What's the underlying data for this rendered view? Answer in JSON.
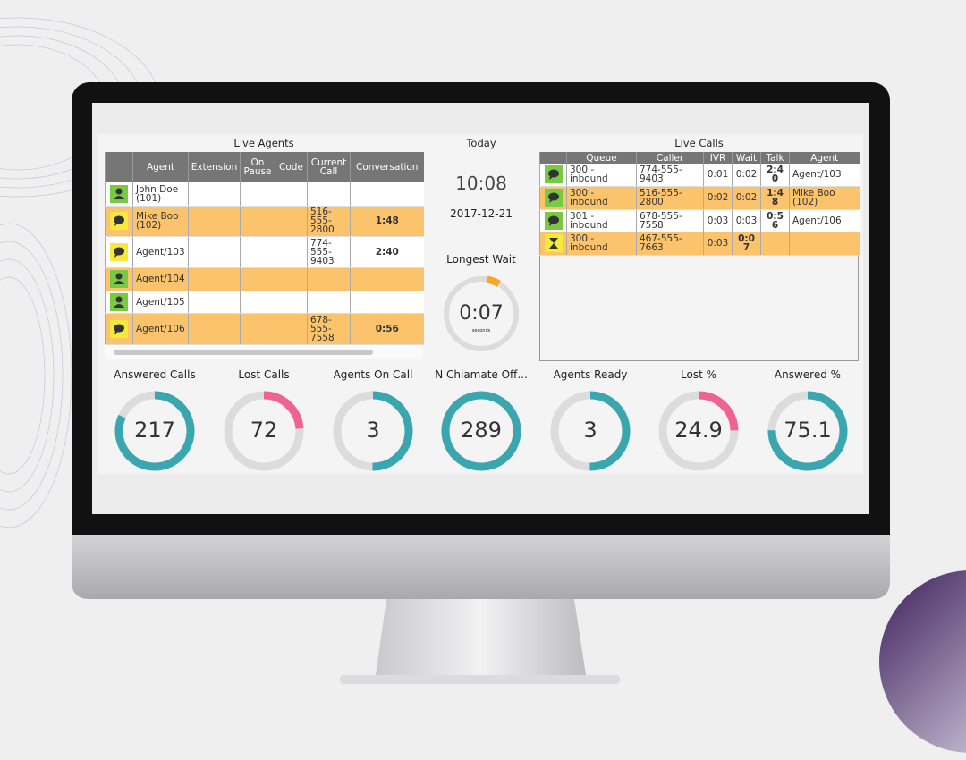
{
  "live_agents": {
    "title": "Live Agents",
    "columns": [
      "Agent",
      "Extension",
      "On Pause",
      "Code",
      "Current Call",
      "Conversation"
    ],
    "rows": [
      {
        "agent": "John Doe (101)"
      },
      {
        "agent": "Mike Boo (102)",
        "current_call": "516-555-2800",
        "conversation": "1:48"
      },
      {
        "agent": "Agent/103",
        "current_call": "774-555-9403",
        "conversation": "2:40"
      },
      {
        "agent": "Agent/104"
      },
      {
        "agent": "Agent/105"
      },
      {
        "agent": "Agent/106",
        "current_call": "678-555-7558",
        "conversation": "0:56"
      }
    ]
  },
  "today": {
    "title": "Today",
    "time": "10:08",
    "date": "2017-12-21"
  },
  "longest_wait": {
    "title": "Longest Wait",
    "value": "0:07",
    "unit": "seconds"
  },
  "live_calls": {
    "title": "Live Calls",
    "columns": [
      "Queue",
      "Caller",
      "IVR",
      "Wait",
      "Talk",
      "Agent"
    ],
    "rows": [
      {
        "queue": "300 - inbound",
        "caller": "774-555-9403",
        "ivr": "0:01",
        "wait": "0:02",
        "talk": "2:40",
        "agent": "Agent/103"
      },
      {
        "queue": "300 - inbound",
        "caller": "516-555-2800",
        "ivr": "0:02",
        "wait": "0:02",
        "talk": "1:48",
        "agent": "Mike Boo (102)"
      },
      {
        "queue": "301 - inbound",
        "caller": "678-555-7558",
        "ivr": "0:03",
        "wait": "0:03",
        "talk": "0:56",
        "agent": "Agent/106"
      },
      {
        "queue": "300 - inbound",
        "caller": "467-555-7663",
        "ivr": "0:03",
        "wait": "0:07"
      }
    ]
  },
  "kpis": [
    {
      "label": "Answered Calls",
      "value": 217
    },
    {
      "label": "Lost Calls",
      "value": 72
    },
    {
      "label": "Agents On Call",
      "value": 3
    },
    {
      "label": "N Chiamate Off...",
      "value": 289
    },
    {
      "label": "Agents Ready",
      "value": 3
    },
    {
      "label": "Lost %",
      "value": 24.9
    },
    {
      "label": "Answered %",
      "value": 75.1
    }
  ]
}
